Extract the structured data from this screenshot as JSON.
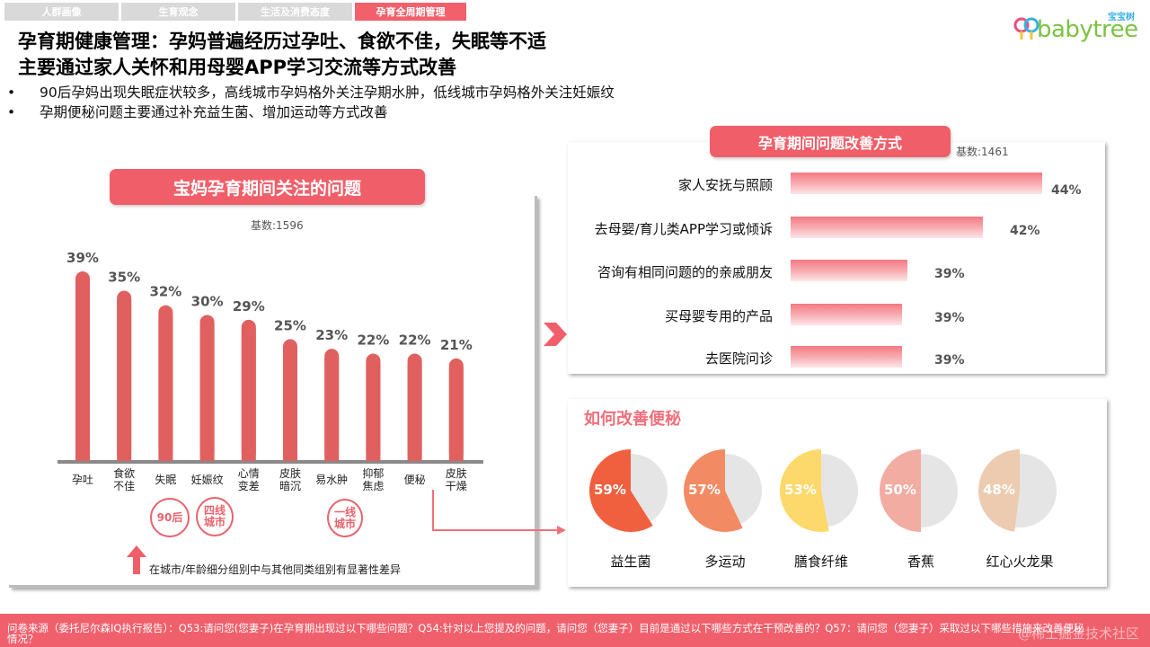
{
  "nav_tabs": [
    {
      "label": "人群画像",
      "active": false
    },
    {
      "label": "生育观念",
      "active": false
    },
    {
      "label": "生活及消费态度",
      "active": false
    },
    {
      "label": "孕育全周期管理",
      "active": true
    }
  ],
  "logo": {
    "text": "babytree",
    "cn": "宝宝树"
  },
  "headline": {
    "line1": "孕育期健康管理：孕妈普遍经历过孕吐、食欲不佳，失眠等不适",
    "line2": "主要通过家人关怀和用母婴APP学习交流等方式改善"
  },
  "bullets": [
    "90后孕妈出现失眠症状较多，高线城市孕妈格外关注孕期水肿，低线城市孕妈格外关注妊娠纹",
    "孕期便秘问题主要通过补充益生菌、增加运动等方式改善"
  ],
  "stamps": {
    "s1": "90后",
    "s2_l1": "四线",
    "s2_l2": "城市",
    "s3_l1": "一线",
    "s3_l2": "城市"
  },
  "legend_note": "在城市/年龄细分组别中与其他同类组别有显著性差异",
  "colors": {
    "accent": "#f05f69",
    "bar": "#e06060",
    "pie_bg": "#e5e5e5"
  },
  "footer": {
    "line1": "问卷来源（委托尼尔森IQ执行报告）：Q53:请问您(您妻子)在孕育期出现过以下哪些问题？Q54:针对以上您提及的问题，请问您（您妻子）目前是通过以下哪些方式在干预改善的？Q57：请问您（您妻子）采取过以下哪些措施来改善便秘",
    "line2": "情况？",
    "watermark": "@稀土掘金技术社区"
  },
  "chart_data": [
    {
      "type": "bar",
      "title": "宝妈孕育期间关注的问题",
      "subtitle": "基数:1596",
      "categories": [
        "孕吐",
        "食欲\n不佳",
        "失眠",
        "妊娠纹",
        "心情\n变差",
        "皮肤\n暗沉",
        "易水肿",
        "抑郁\n焦虑",
        "便秘",
        "皮肤\n干燥"
      ],
      "values": [
        39,
        35,
        32,
        30,
        29,
        25,
        23,
        22,
        22,
        21
      ],
      "value_labels": [
        "39%",
        "35%",
        "32%",
        "30%",
        "29%",
        "25%",
        "23%",
        "22%",
        "22%",
        "21%"
      ],
      "unit": "%",
      "ylim": [
        0,
        40
      ],
      "grid": false,
      "xlabel": "",
      "ylabel": ""
    },
    {
      "type": "bar",
      "orientation": "horizontal",
      "title": "孕育期间问题改善方式",
      "subtitle": "基数:1461",
      "categories": [
        "家人安抚与照顾",
        "去母婴/育儿类APP学习或倾诉",
        "咨询有相同问题的的亲戚朋友",
        "买母婴专用的产品",
        "去医院问诊"
      ],
      "values": [
        44,
        42,
        39,
        39,
        39
      ],
      "value_labels": [
        "44%",
        "42%",
        "39%",
        "39%",
        "39%"
      ],
      "unit": "%",
      "grid": false
    },
    {
      "type": "pie",
      "title": "如何改善便秘",
      "categories": [
        "益生菌",
        "多运动",
        "膳食纤维",
        "香蕉",
        "红心火龙果"
      ],
      "values": [
        59,
        57,
        53,
        50,
        48
      ],
      "value_labels": [
        "59%",
        "57%",
        "53%",
        "50%",
        "48%"
      ],
      "colors": [
        "#f0603f",
        "#f28a63",
        "#fdd86a",
        "#f2aca2",
        "#eccbb0"
      ],
      "unit": "%"
    }
  ]
}
